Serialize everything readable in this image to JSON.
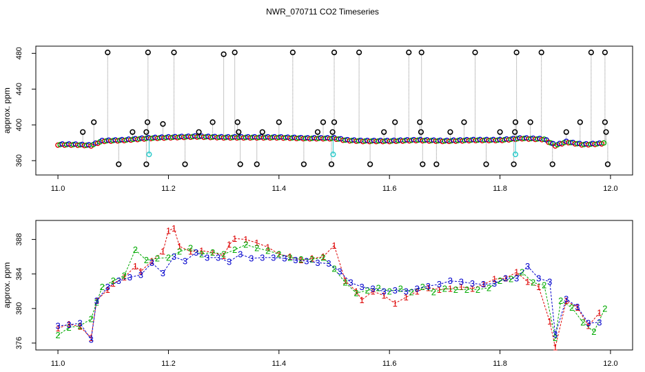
{
  "title": "NWR_070711  CO2 Timeseries",
  "colors": {
    "black": "#000000",
    "grey": "#8a8a8a",
    "red": "#dd0000",
    "green": "#00aa00",
    "blue": "#0000cc",
    "cyan": "#33cccc"
  },
  "chart_data": [
    {
      "type": "scatter",
      "title": "",
      "xlabel": "",
      "ylabel": "approx. ppm",
      "xlim": [
        10.96,
        12.04
      ],
      "ylim": [
        344,
        488
      ],
      "xticks": [
        11.0,
        11.2,
        11.4,
        11.6,
        11.8,
        12.0
      ],
      "xtick_labels": [
        "11.0",
        "11.2",
        "11.4",
        "11.6",
        "11.8",
        "12.0"
      ],
      "yticks": [
        360,
        400,
        440,
        480
      ],
      "ytick_labels": [
        "360",
        "400",
        "440",
        "480"
      ],
      "grid": false,
      "baseline": [
        [
          11.0,
          378
        ],
        [
          11.03,
          378
        ],
        [
          11.06,
          377
        ],
        [
          11.08,
          382
        ],
        [
          11.12,
          383
        ],
        [
          11.16,
          385
        ],
        [
          11.2,
          386
        ],
        [
          11.25,
          387
        ],
        [
          11.3,
          386
        ],
        [
          11.35,
          386
        ],
        [
          11.4,
          386
        ],
        [
          11.45,
          385
        ],
        [
          11.5,
          385
        ],
        [
          11.52,
          383
        ],
        [
          11.55,
          382
        ],
        [
          11.6,
          382
        ],
        [
          11.65,
          383
        ],
        [
          11.7,
          382
        ],
        [
          11.75,
          383
        ],
        [
          11.8,
          383
        ],
        [
          11.84,
          385
        ],
        [
          11.88,
          384
        ],
        [
          11.9,
          377
        ],
        [
          11.92,
          381
        ],
        [
          11.95,
          378
        ],
        [
          11.98,
          379
        ],
        [
          11.99,
          380
        ]
      ],
      "outliers": [
        [
          11.045,
          392
        ],
        [
          11.065,
          403
        ],
        [
          11.09,
          481
        ],
        [
          11.11,
          356
        ],
        [
          11.135,
          392
        ],
        [
          11.16,
          356
        ],
        [
          11.16,
          392
        ],
        [
          11.162,
          403
        ],
        [
          11.163,
          481
        ],
        [
          11.19,
          401
        ],
        [
          11.21,
          481
        ],
        [
          11.23,
          356
        ],
        [
          11.255,
          392
        ],
        [
          11.28,
          403
        ],
        [
          11.3,
          479
        ],
        [
          11.32,
          481
        ],
        [
          11.325,
          403
        ],
        [
          11.327,
          392
        ],
        [
          11.33,
          356
        ],
        [
          11.36,
          356
        ],
        [
          11.37,
          392
        ],
        [
          11.4,
          403
        ],
        [
          11.425,
          481
        ],
        [
          11.445,
          356
        ],
        [
          11.47,
          392
        ],
        [
          11.48,
          403
        ],
        [
          11.495,
          356
        ],
        [
          11.497,
          392
        ],
        [
          11.5,
          403
        ],
        [
          11.5,
          481
        ],
        [
          11.545,
          481
        ],
        [
          11.565,
          356
        ],
        [
          11.59,
          392
        ],
        [
          11.61,
          403
        ],
        [
          11.635,
          481
        ],
        [
          11.655,
          403
        ],
        [
          11.657,
          392
        ],
        [
          11.66,
          356
        ],
        [
          11.658,
          481
        ],
        [
          11.685,
          356
        ],
        [
          11.71,
          392
        ],
        [
          11.735,
          403
        ],
        [
          11.755,
          481
        ],
        [
          11.775,
          356
        ],
        [
          11.8,
          392
        ],
        [
          11.825,
          356
        ],
        [
          11.827,
          392
        ],
        [
          11.828,
          403
        ],
        [
          11.83,
          481
        ],
        [
          11.855,
          403
        ],
        [
          11.875,
          481
        ],
        [
          11.895,
          356
        ],
        [
          11.92,
          392
        ],
        [
          11.945,
          403
        ],
        [
          11.965,
          481
        ],
        [
          11.99,
          403
        ],
        [
          11.992,
          392
        ],
        [
          11.995,
          356
        ],
        [
          11.99,
          481
        ]
      ],
      "cyan_points": [
        [
          11.165,
          367
        ],
        [
          11.498,
          367
        ],
        [
          11.828,
          367
        ]
      ]
    },
    {
      "type": "scatter",
      "title": "",
      "xlabel": "",
      "ylabel": "approx. ppm",
      "xlim": [
        10.96,
        12.04
      ],
      "ylim": [
        375.2,
        390.2
      ],
      "xticks": [
        11.0,
        11.2,
        11.4,
        11.6,
        11.8,
        12.0
      ],
      "xtick_labels": [
        "11.0",
        "11.2",
        "11.4",
        "11.6",
        "11.8",
        "12.0"
      ],
      "yticks": [
        376,
        380,
        384,
        388
      ],
      "ytick_labels": [
        "376",
        "380",
        "384",
        "388"
      ],
      "grid": false,
      "series": [
        {
          "name": "1",
          "x": [
            11.0,
            11.02,
            11.04,
            11.06,
            11.07,
            11.09,
            11.1,
            11.12,
            11.14,
            11.15,
            11.17,
            11.19,
            11.2,
            11.21,
            11.22,
            11.24,
            11.26,
            11.28,
            11.3,
            11.31,
            11.32,
            11.34,
            11.36,
            11.38,
            11.4,
            11.42,
            11.44,
            11.46,
            11.48,
            11.5,
            11.52,
            11.54,
            11.55,
            11.57,
            11.59,
            11.61,
            11.63,
            11.65,
            11.67,
            11.69,
            11.71,
            11.73,
            11.75,
            11.77,
            11.79,
            11.81,
            11.83,
            11.85,
            11.87,
            11.89,
            11.9,
            11.92,
            11.94,
            11.96,
            11.98
          ],
          "y": [
            377.7,
            378.2,
            377.9,
            376.6,
            380.9,
            382.2,
            382.9,
            383.6,
            384.9,
            384.3,
            385.5,
            386.6,
            389.0,
            389.3,
            387.2,
            386.6,
            386.7,
            386.5,
            386.1,
            387.4,
            388.1,
            388.0,
            387.6,
            387.1,
            386.3,
            386.0,
            385.6,
            385.8,
            386.0,
            387.3,
            383.2,
            382.0,
            381.0,
            382.0,
            381.5,
            380.6,
            381.3,
            382.0,
            382.4,
            382.2,
            382.3,
            382.5,
            382.3,
            382.8,
            383.4,
            383.5,
            384.2,
            383.1,
            382.5,
            378.5,
            375.5,
            380.9,
            380.1,
            378.0,
            379.5
          ]
        },
        {
          "name": "2",
          "x": [
            11.0,
            11.02,
            11.04,
            11.06,
            11.07,
            11.08,
            11.1,
            11.12,
            11.14,
            11.16,
            11.18,
            11.2,
            11.22,
            11.24,
            11.26,
            11.28,
            11.3,
            11.32,
            11.34,
            11.36,
            11.38,
            11.4,
            11.42,
            11.44,
            11.46,
            11.48,
            11.5,
            11.52,
            11.54,
            11.56,
            11.58,
            11.6,
            11.62,
            11.64,
            11.66,
            11.68,
            11.7,
            11.72,
            11.74,
            11.76,
            11.78,
            11.8,
            11.82,
            11.84,
            11.86,
            11.88,
            11.9,
            11.91,
            11.93,
            11.95,
            11.97,
            11.99
          ],
          "y": [
            376.9,
            377.8,
            378.0,
            378.8,
            380.7,
            382.5,
            383.2,
            383.8,
            386.8,
            385.6,
            385.8,
            385.9,
            386.6,
            387.0,
            386.3,
            386.5,
            386.3,
            386.8,
            387.4,
            387.0,
            386.7,
            386.3,
            385.9,
            385.7,
            385.7,
            385.9,
            384.6,
            383.0,
            381.8,
            382.1,
            382.4,
            382.0,
            382.3,
            381.9,
            382.5,
            381.9,
            382.3,
            382.2,
            382.2,
            382.2,
            382.4,
            383.2,
            383.4,
            384.2,
            383.0,
            382.7,
            376.6,
            380.9,
            380.1,
            378.4,
            377.3,
            380.0
          ]
        },
        {
          "name": "3",
          "x": [
            11.0,
            11.02,
            11.04,
            11.06,
            11.07,
            11.09,
            11.11,
            11.13,
            11.15,
            11.17,
            11.19,
            11.21,
            11.23,
            11.25,
            11.27,
            11.29,
            11.31,
            11.33,
            11.35,
            11.37,
            11.39,
            11.41,
            11.43,
            11.45,
            11.47,
            11.49,
            11.51,
            11.53,
            11.55,
            11.57,
            11.59,
            11.61,
            11.63,
            11.65,
            11.67,
            11.69,
            11.71,
            11.73,
            11.75,
            11.77,
            11.79,
            11.81,
            11.83,
            11.85,
            11.87,
            11.89,
            11.9,
            11.92,
            11.94,
            11.96,
            11.98
          ],
          "y": [
            378.0,
            378.1,
            378.3,
            376.4,
            380.9,
            382.5,
            383.2,
            383.6,
            383.9,
            385.3,
            384.1,
            386.0,
            385.5,
            386.5,
            385.9,
            385.9,
            385.4,
            386.3,
            385.8,
            385.9,
            385.9,
            385.8,
            385.6,
            385.5,
            385.3,
            385.2,
            384.3,
            383.0,
            382.5,
            382.3,
            382.0,
            382.1,
            382.0,
            382.3,
            382.6,
            382.8,
            383.2,
            383.1,
            382.9,
            382.8,
            382.9,
            383.5,
            383.5,
            384.9,
            383.5,
            383.1,
            377.0,
            381.1,
            380.2,
            378.3,
            378.4
          ]
        }
      ]
    }
  ]
}
